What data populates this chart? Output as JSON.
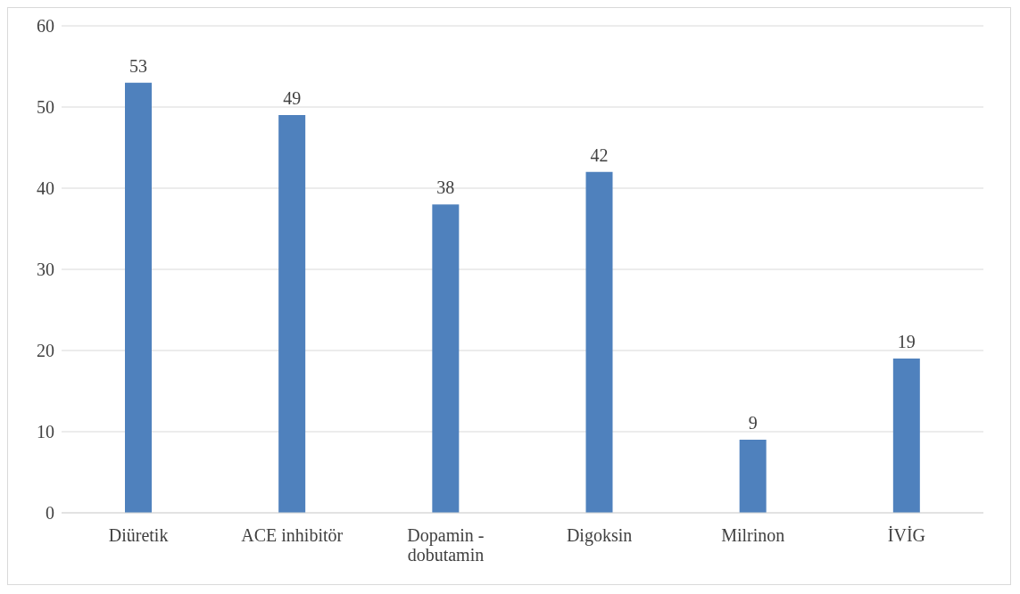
{
  "chart_data": {
    "type": "bar",
    "categories": [
      "Diüretik",
      "ACE inhibitör",
      "Dopamin - dobutamin",
      "Digoksin",
      "Milrinon",
      "İVİG"
    ],
    "values": [
      53,
      49,
      38,
      42,
      9,
      19
    ],
    "color": "#4f81bd",
    "ylim": [
      0,
      60
    ],
    "yticks": [
      0,
      10,
      20,
      30,
      40,
      50,
      60
    ],
    "grid": "y",
    "data_labels": true
  }
}
